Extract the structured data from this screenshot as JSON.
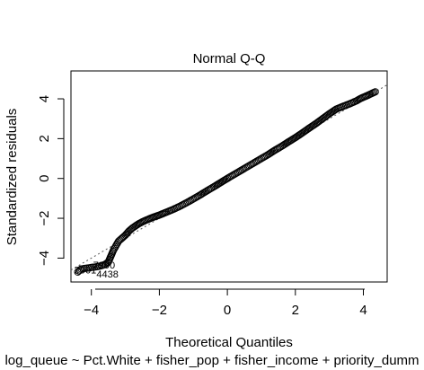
{
  "chart_data": {
    "type": "scatter",
    "title": "Normal Q-Q",
    "xlabel": "Theoretical Quantiles",
    "ylabel": "Standardized residuals",
    "subtitle": "log_queue ~ Pct.White + fisher_pop + fisher_income + priority_dumm",
    "xlim": [
      -4.6,
      4.7
    ],
    "ylim": [
      -5.2,
      5.4
    ],
    "xticks": [
      -4,
      -2,
      0,
      2,
      4
    ],
    "yticks": [
      -4,
      -2,
      0,
      2,
      4
    ],
    "grid": false,
    "reference_line": {
      "intercept": 0,
      "slope": 1.0,
      "style": "dotted"
    },
    "annotations": [
      {
        "text": "7990",
        "x": -3.95,
        "y": -4.35
      },
      {
        "text": "2001",
        "x": -4.5,
        "y": -4.6
      },
      {
        "text": "4438",
        "x": -3.85,
        "y": -4.8
      }
    ],
    "points": [
      [
        -4.4,
        -4.7
      ],
      [
        -4.3,
        -4.55
      ],
      [
        -4.2,
        -4.52
      ],
      [
        -4.1,
        -4.5
      ],
      [
        -4.0,
        -4.47
      ],
      [
        -3.9,
        -4.45
      ],
      [
        -3.8,
        -4.42
      ],
      [
        -3.7,
        -4.38
      ],
      [
        -3.6,
        -4.32
      ],
      [
        -3.5,
        -4.2
      ],
      [
        -3.45,
        -4.0
      ],
      [
        -3.4,
        -3.8
      ],
      [
        -3.35,
        -3.6
      ],
      [
        -3.3,
        -3.45
      ],
      [
        -3.25,
        -3.3
      ],
      [
        -3.2,
        -3.15
      ],
      [
        -3.1,
        -3.0
      ],
      [
        -3.0,
        -2.85
      ],
      [
        -2.9,
        -2.65
      ],
      [
        -2.8,
        -2.5
      ],
      [
        -2.7,
        -2.38
      ],
      [
        -2.6,
        -2.27
      ],
      [
        -2.5,
        -2.18
      ],
      [
        -2.4,
        -2.1
      ],
      [
        -2.3,
        -2.03
      ],
      [
        -2.2,
        -1.96
      ],
      [
        -2.1,
        -1.9
      ],
      [
        -2.0,
        -1.84
      ],
      [
        -1.9,
        -1.77
      ],
      [
        -1.8,
        -1.7
      ],
      [
        -1.6,
        -1.56
      ],
      [
        -1.4,
        -1.4
      ],
      [
        -1.2,
        -1.22
      ],
      [
        -1.0,
        -1.03
      ],
      [
        -0.8,
        -0.83
      ],
      [
        -0.6,
        -0.62
      ],
      [
        -0.4,
        -0.42
      ],
      [
        -0.2,
        -0.21
      ],
      [
        0.0,
        0.0
      ],
      [
        0.2,
        0.2
      ],
      [
        0.4,
        0.4
      ],
      [
        0.6,
        0.6
      ],
      [
        0.8,
        0.8
      ],
      [
        1.0,
        1.0
      ],
      [
        1.2,
        1.2
      ],
      [
        1.4,
        1.42
      ],
      [
        1.6,
        1.62
      ],
      [
        1.8,
        1.84
      ],
      [
        2.0,
        2.05
      ],
      [
        2.2,
        2.28
      ],
      [
        2.4,
        2.52
      ],
      [
        2.6,
        2.75
      ],
      [
        2.8,
        3.0
      ],
      [
        3.0,
        3.25
      ],
      [
        3.2,
        3.48
      ],
      [
        3.4,
        3.62
      ],
      [
        3.6,
        3.75
      ],
      [
        3.8,
        3.9
      ],
      [
        3.9,
        4.0
      ],
      [
        4.0,
        4.08
      ],
      [
        4.1,
        4.15
      ],
      [
        4.35,
        4.35
      ]
    ]
  }
}
